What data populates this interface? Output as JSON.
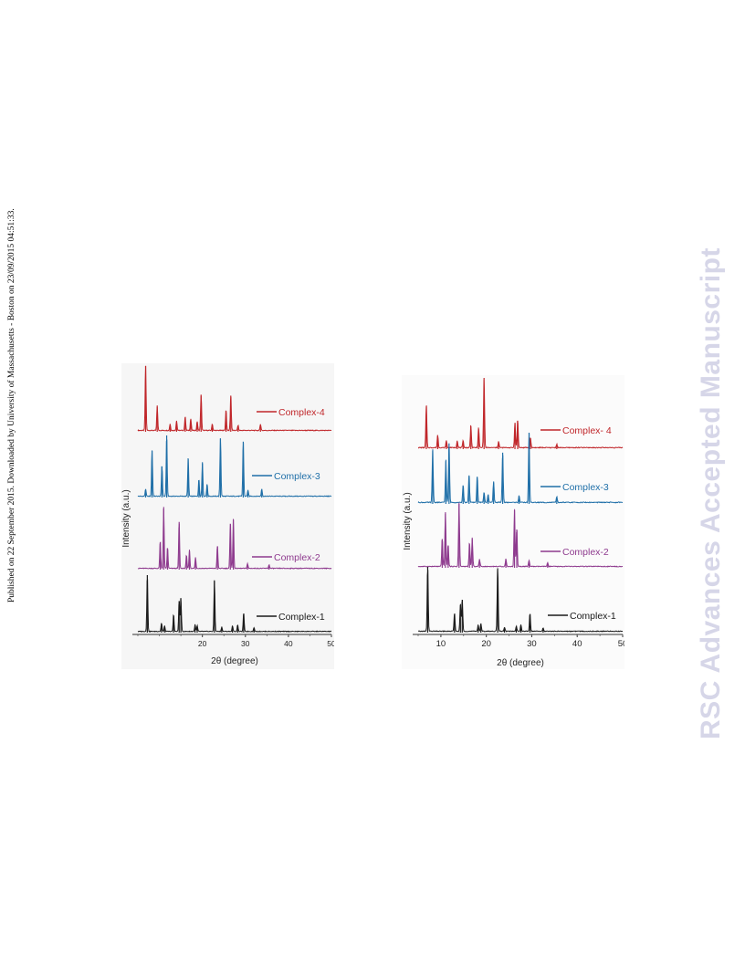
{
  "side_note": "Published on 22 September 2015. Downloaded by University of Massachusetts - Boston on 23/09/2015 04:51:33.",
  "watermark": "RSC Advances Accepted Manuscript",
  "colors": {
    "complex1": "#1a1a1a",
    "complex2": "#8e3a8e",
    "complex3": "#1f6fa8",
    "complex4": "#c0262a"
  },
  "chart_data": [
    {
      "type": "line",
      "xlabel": "2θ (degree)",
      "ylabel": "Intensity (a.u.)",
      "xlim": [
        5,
        50
      ],
      "xticks": [
        20,
        30,
        40,
        50
      ],
      "series": [
        {
          "name": "Complex-4",
          "peaks": [
            [
              6.8,
              1.0
            ],
            [
              9.5,
              0.38
            ],
            [
              12.5,
              0.1
            ],
            [
              14.0,
              0.15
            ],
            [
              16.0,
              0.22
            ],
            [
              17.3,
              0.18
            ],
            [
              18.8,
              0.14
            ],
            [
              19.7,
              0.55
            ],
            [
              22.3,
              0.1
            ],
            [
              25.5,
              0.32
            ],
            [
              26.6,
              0.55
            ],
            [
              28.3,
              0.08
            ],
            [
              33.5,
              0.1
            ]
          ]
        },
        {
          "name": "Complex-3",
          "peaks": [
            [
              6.8,
              0.12
            ],
            [
              8.3,
              0.75
            ],
            [
              10.6,
              0.5
            ],
            [
              11.7,
              1.0
            ],
            [
              16.7,
              0.62
            ],
            [
              19.2,
              0.28
            ],
            [
              20.0,
              0.55
            ],
            [
              21.1,
              0.2
            ],
            [
              24.2,
              0.95
            ],
            [
              29.5,
              0.9
            ],
            [
              30.6,
              0.1
            ],
            [
              33.8,
              0.12
            ]
          ]
        },
        {
          "name": "Complex-2",
          "peaks": [
            [
              10.2,
              0.45
            ],
            [
              11.0,
              1.0
            ],
            [
              11.9,
              0.35
            ],
            [
              14.6,
              0.78
            ],
            [
              16.3,
              0.22
            ],
            [
              17.0,
              0.3
            ],
            [
              18.4,
              0.18
            ],
            [
              23.5,
              0.38
            ],
            [
              26.5,
              0.75
            ],
            [
              27.2,
              0.82
            ],
            [
              30.5,
              0.08
            ],
            [
              35.5,
              0.06
            ]
          ]
        },
        {
          "name": "Complex-1",
          "peaks": [
            [
              7.2,
              1.0
            ],
            [
              10.5,
              0.15
            ],
            [
              11.2,
              0.1
            ],
            [
              13.3,
              0.3
            ],
            [
              14.6,
              0.55
            ],
            [
              15.0,
              0.6
            ],
            [
              18.3,
              0.12
            ],
            [
              18.8,
              0.1
            ],
            [
              22.8,
              0.9
            ],
            [
              24.5,
              0.08
            ],
            [
              27.0,
              0.1
            ],
            [
              28.2,
              0.12
            ],
            [
              29.6,
              0.33
            ],
            [
              32.0,
              0.07
            ]
          ]
        }
      ]
    },
    {
      "type": "line",
      "xlabel": "2θ (degree)",
      "ylabel": "Intensity (a.u.)",
      "xlim": [
        5,
        50
      ],
      "xticks": [
        10,
        20,
        30,
        40,
        50
      ],
      "series": [
        {
          "name": "Complex- 4",
          "peaks": [
            [
              6.8,
              0.6
            ],
            [
              9.3,
              0.18
            ],
            [
              11.2,
              0.1
            ],
            [
              13.6,
              0.1
            ],
            [
              14.9,
              0.1
            ],
            [
              16.6,
              0.32
            ],
            [
              18.3,
              0.28
            ],
            [
              19.5,
              1.0
            ],
            [
              22.7,
              0.09
            ],
            [
              26.3,
              0.36
            ],
            [
              26.9,
              0.4
            ],
            [
              29.7,
              0.15
            ],
            [
              35.5,
              0.05
            ]
          ]
        },
        {
          "name": "Complex-3",
          "peaks": [
            [
              8.2,
              0.75
            ],
            [
              11.1,
              0.6
            ],
            [
              11.8,
              0.85
            ],
            [
              14.9,
              0.25
            ],
            [
              16.2,
              0.4
            ],
            [
              18.0,
              0.38
            ],
            [
              19.5,
              0.15
            ],
            [
              20.4,
              0.12
            ],
            [
              21.6,
              0.3
            ],
            [
              23.6,
              0.72
            ],
            [
              27.2,
              0.1
            ],
            [
              29.4,
              1.0
            ],
            [
              35.5,
              0.08
            ]
          ]
        },
        {
          "name": "Complex-2",
          "peaks": [
            [
              10.3,
              0.45
            ],
            [
              11.0,
              0.85
            ],
            [
              11.6,
              0.35
            ],
            [
              14.0,
              1.0
            ],
            [
              16.3,
              0.38
            ],
            [
              16.9,
              0.45
            ],
            [
              18.5,
              0.12
            ],
            [
              24.3,
              0.12
            ],
            [
              26.2,
              0.9
            ],
            [
              26.7,
              0.6
            ],
            [
              29.4,
              0.1
            ],
            [
              33.5,
              0.06
            ]
          ]
        },
        {
          "name": "Complex-1",
          "peaks": [
            [
              7.1,
              1.0
            ],
            [
              13.0,
              0.28
            ],
            [
              14.3,
              0.42
            ],
            [
              14.7,
              0.5
            ],
            [
              18.2,
              0.1
            ],
            [
              18.8,
              0.12
            ],
            [
              22.5,
              0.98
            ],
            [
              24.0,
              0.06
            ],
            [
              26.6,
              0.08
            ],
            [
              27.6,
              0.1
            ],
            [
              29.6,
              0.28
            ],
            [
              32.5,
              0.05
            ]
          ]
        }
      ]
    }
  ]
}
